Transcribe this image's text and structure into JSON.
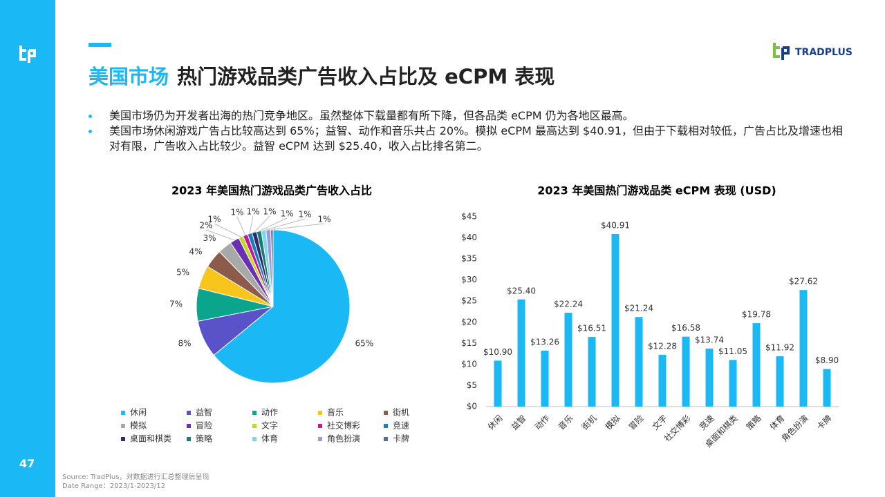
{
  "header": {
    "title_highlight": "美国市场",
    "title_rest": "热门游戏品类广告收入占比及 eCPM 表现",
    "logo_text": "TRADPLUS"
  },
  "bullets": [
    "美国市场仍为开发者出海的热门竞争地区。虽然整体下载量都有所下降，但各品类 eCPM 仍为各地区最高。",
    "美国市场休闲游戏广告占比较高达到 65%；益智、动作和音乐共占 20%。模拟 eCPM 最高达到 $40.91，但由于下载相对较低，广告占比及增速也相对有限，广告收入占比较少。益智 eCPM 达到 $25.40，收入占比排名第二。"
  ],
  "footer": {
    "source": "Source: TradPlus，对数据进行汇总整理后呈现",
    "date_range": "Date Range：2023/1-2023/12",
    "page_number": "47"
  },
  "chart_data": [
    {
      "type": "pie",
      "title": "2023 年美国热门游戏品类广告收入占比",
      "categories": [
        "休闲",
        "益智",
        "动作",
        "音乐",
        "街机",
        "模拟",
        "冒险",
        "文字",
        "社交博彩",
        "竞速",
        "桌面和棋类",
        "策略",
        "体育",
        "角色扮演",
        "卡牌"
      ],
      "values": [
        65,
        8,
        7,
        5,
        4,
        3,
        2,
        1,
        1,
        1,
        1,
        1,
        1,
        1,
        0.5
      ],
      "value_labels": [
        "65%",
        "8%",
        "7%",
        "5%",
        "4%",
        "3%",
        "2%",
        "1%",
        "1%",
        "1%",
        "1%",
        "1%",
        "1%",
        "1%",
        null
      ],
      "colors": [
        "#1ab8f5",
        "#5a52c8",
        "#0aa58c",
        "#f7c51c",
        "#8d5b4b",
        "#a8a8a8",
        "#6b2fb3",
        "#c6d81c",
        "#c2189c",
        "#1a80bb",
        "#2e2b7c",
        "#17806a",
        "#82d4f5",
        "#9d98d8",
        "#5b6f82"
      ]
    },
    {
      "type": "bar",
      "title": "2023 年美国热门游戏品类 eCPM 表现 (USD)",
      "categories": [
        "休闲",
        "益智",
        "动作",
        "音乐",
        "街机",
        "模拟",
        "冒险",
        "文字",
        "社交博彩",
        "竞速",
        "桌面和棋类",
        "策略",
        "体育",
        "角色扮演",
        "卡牌"
      ],
      "values": [
        10.9,
        25.4,
        13.26,
        22.24,
        16.51,
        40.91,
        21.24,
        12.28,
        16.58,
        13.74,
        11.05,
        19.78,
        11.92,
        27.62,
        8.9
      ],
      "value_labels": [
        "$10.90",
        "$25.40",
        "$13.26",
        "$22.24",
        "$16.51",
        "$40.91",
        "$21.24",
        "$12.28",
        "$16.58",
        "$13.74",
        "$11.05",
        "$19.78",
        "$11.92",
        "$27.62",
        "$8.90"
      ],
      "color": "#1ab8f5",
      "ylim": [
        0,
        45
      ],
      "yticks": [
        {
          "value": 0,
          "label": "$0"
        },
        {
          "value": 5,
          "label": "$5"
        },
        {
          "value": 10,
          "label": "$10"
        },
        {
          "value": 15,
          "label": "$15"
        },
        {
          "value": 20,
          "label": "$20"
        },
        {
          "value": 25,
          "label": "$25"
        },
        {
          "value": 30,
          "label": "$30"
        },
        {
          "value": 35,
          "label": "$35"
        },
        {
          "value": 40,
          "label": "$40"
        },
        {
          "value": 45,
          "label": "$45"
        }
      ],
      "grid": false
    }
  ]
}
